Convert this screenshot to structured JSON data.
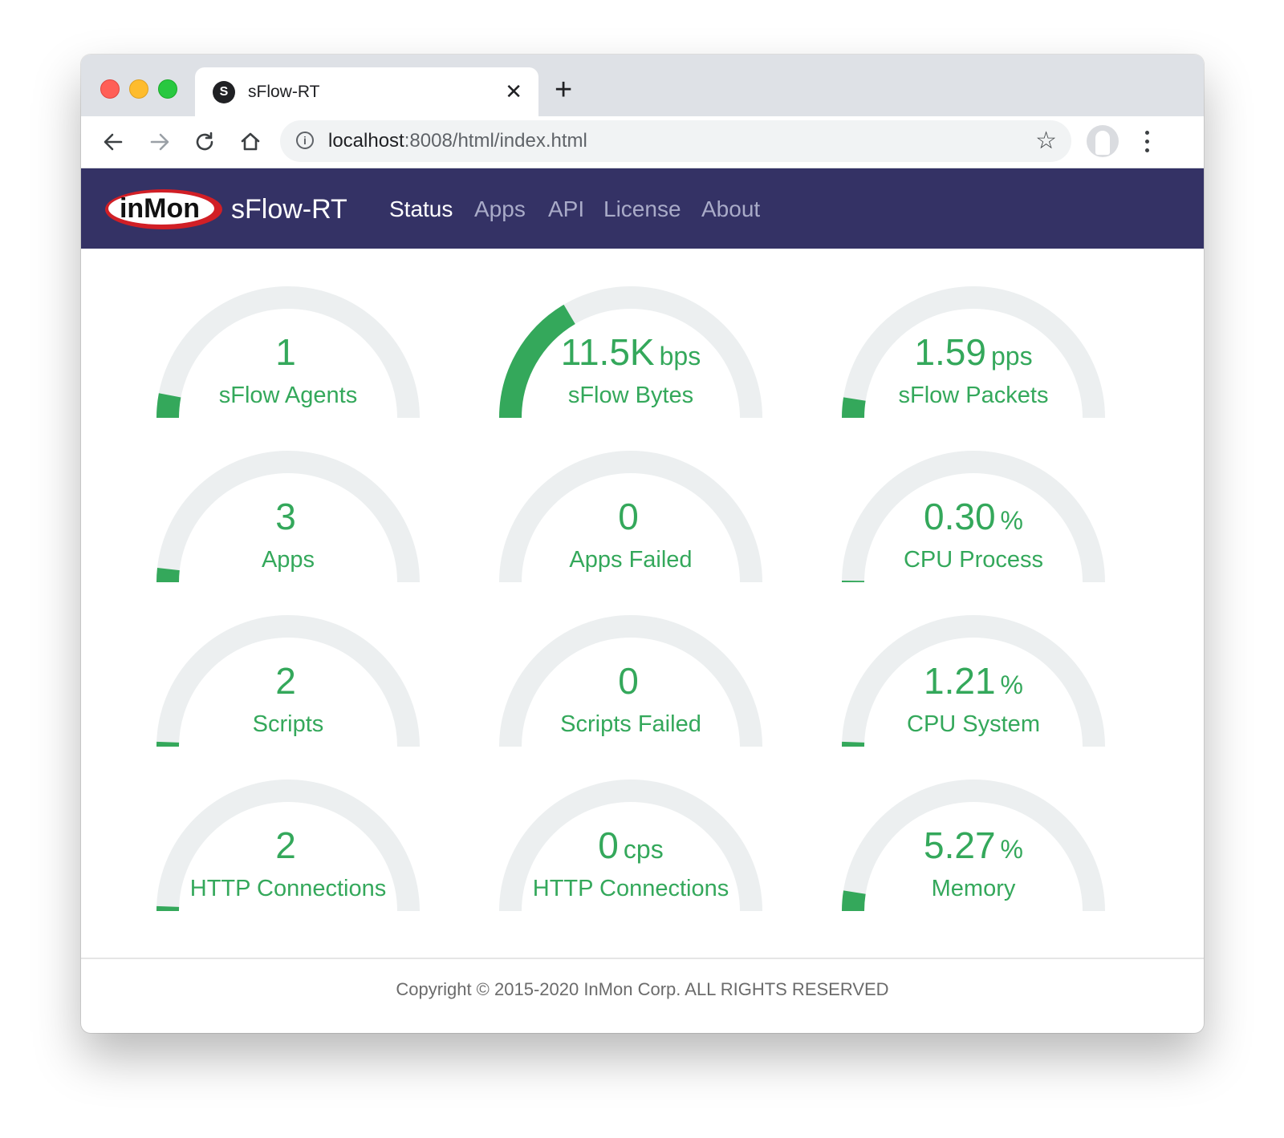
{
  "browser": {
    "tab": {
      "favicon_letter": "S",
      "title": "sFlow-RT"
    },
    "url": {
      "host": "localhost",
      "rest": ":8008/html/index.html"
    }
  },
  "navbar": {
    "logo_text": "inMon",
    "brand": "sFlow-RT",
    "items": [
      {
        "label": "Status",
        "active": true
      },
      {
        "label": "Apps",
        "active": false
      },
      {
        "label": "API",
        "active": false
      },
      {
        "label": "License",
        "active": false
      },
      {
        "label": "About",
        "active": false
      }
    ]
  },
  "colors": {
    "gauge_fill": "#34a85b",
    "gauge_track": "#eceff0",
    "navbar": "#343265"
  },
  "gauges": [
    {
      "value": "1",
      "unit": "",
      "label": "sFlow Agents",
      "fill": 0.06
    },
    {
      "value": "11.5K",
      "unit": "bps",
      "label": "sFlow Bytes",
      "fill": 0.33
    },
    {
      "value": "1.59",
      "unit": "pps",
      "label": "sFlow Packets",
      "fill": 0.05
    },
    {
      "value": "3",
      "unit": "",
      "label": "Apps",
      "fill": 0.035
    },
    {
      "value": "0",
      "unit": "",
      "label": "Apps Failed",
      "fill": 0
    },
    {
      "value": "0.30",
      "unit": "%",
      "label": "CPU Process",
      "fill": 0.003
    },
    {
      "value": "2",
      "unit": "",
      "label": "Scripts",
      "fill": 0.012
    },
    {
      "value": "0",
      "unit": "",
      "label": "Scripts Failed",
      "fill": 0
    },
    {
      "value": "1.21",
      "unit": "%",
      "label": "CPU System",
      "fill": 0.012
    },
    {
      "value": "2",
      "unit": "",
      "label": "HTTP Connections",
      "fill": 0.012
    },
    {
      "value": "0",
      "unit": "cps",
      "label": "HTTP Connections",
      "fill": 0
    },
    {
      "value": "5.27",
      "unit": "%",
      "label": "Memory",
      "fill": 0.05
    }
  ],
  "footer": {
    "copyright": "Copyright © 2015-2020 InMon Corp. ALL RIGHTS RESERVED"
  }
}
